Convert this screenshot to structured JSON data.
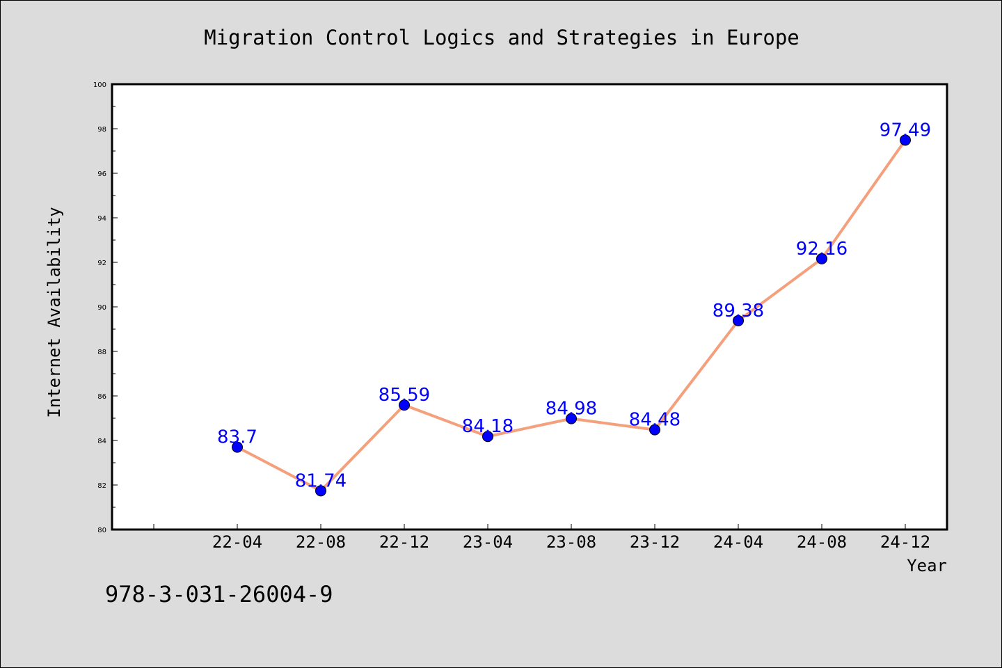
{
  "chart_data": {
    "type": "line",
    "title": "Migration Control Logics and Strategies in Europe",
    "xlabel": "Year",
    "ylabel": "Internet Availability",
    "categories": [
      "22-04",
      "22-08",
      "22-12",
      "23-04",
      "23-08",
      "23-12",
      "24-04",
      "24-08",
      "24-12"
    ],
    "series": [
      {
        "values": [
          83.7,
          81.74,
          85.59,
          84.18,
          84.98,
          84.48,
          89.38,
          92.16,
          97.49
        ],
        "data_labels": [
          "83.7",
          "81.74",
          "85.59",
          "84.18",
          "84.98",
          "84.48",
          "89.38",
          "92.16",
          "97.49"
        ],
        "line_color": "#f4a07c",
        "marker_color": "#0000ff"
      }
    ],
    "ylim": [
      80,
      100
    ],
    "yticks": [
      "80",
      "82",
      "84",
      "86",
      "88",
      "90",
      "92",
      "94",
      "96",
      "98",
      "100"
    ],
    "grid": false,
    "legend": "none"
  },
  "footer": {
    "isbn": "978-3-031-26004-9"
  },
  "colors": {
    "background": "#dcdcdc",
    "plot_area": "#ffffff"
  }
}
